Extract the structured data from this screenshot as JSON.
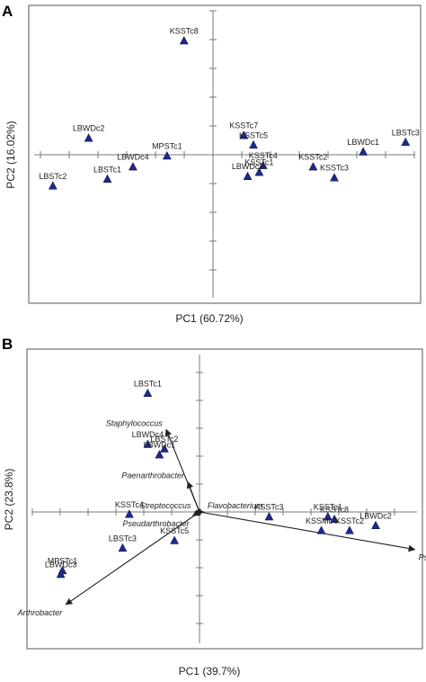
{
  "chart_data": [
    {
      "panel": "A",
      "type": "scatter",
      "xlabel": "PC1 (60.72%)",
      "ylabel": "PC2 (16.02%)",
      "xlim": [
        -1.05,
        1.05
      ],
      "ylim": [
        -1.05,
        1.05
      ],
      "marker_color": "#1c2a8c",
      "points": [
        {
          "label": "KSSTc8",
          "x": -0.17,
          "y": 0.83
        },
        {
          "label": "LBWDc2",
          "x": -0.73,
          "y": 0.12
        },
        {
          "label": "MPSTc1",
          "x": -0.27,
          "y": -0.01
        },
        {
          "label": "LBWDc4",
          "x": -0.47,
          "y": -0.09
        },
        {
          "label": "LBSTc1",
          "x": -0.62,
          "y": -0.18
        },
        {
          "label": "LBSTc2",
          "x": -0.94,
          "y": -0.23
        },
        {
          "label": "KSSTc7",
          "x": 0.16,
          "y": 0.14
        },
        {
          "label": "KSSTc5",
          "x": 0.21,
          "y": 0.07
        },
        {
          "label": "KSSTc4",
          "x": 0.26,
          "y": -0.08
        },
        {
          "label": "KSSTc1",
          "x": 0.24,
          "y": -0.13
        },
        {
          "label": "LBWDc3",
          "x": 0.18,
          "y": -0.16
        },
        {
          "label": "KSSTc2",
          "x": 0.52,
          "y": -0.09
        },
        {
          "label": "KSSTc3",
          "x": 0.63,
          "y": -0.17
        },
        {
          "label": "LBWDc1",
          "x": 0.78,
          "y": 0.02
        },
        {
          "label": "LBSTc3",
          "x": 1.0,
          "y": 0.09
        }
      ]
    },
    {
      "panel": "B",
      "type": "scatter",
      "xlabel": "PC1 (39.7%)",
      "ylabel": "PC2 (23.8%)",
      "xlim": [
        -1.0,
        1.0
      ],
      "ylim": [
        -1.05,
        1.05
      ],
      "marker_color": "#1c2a8c",
      "points": [
        {
          "label": "LBSTc1",
          "x": -0.31,
          "y": 0.79
        },
        {
          "label": "LBWDc4",
          "x": -0.31,
          "y": 0.45
        },
        {
          "label": "LBSTc2",
          "x": -0.21,
          "y": 0.42
        },
        {
          "label": "LBWDc1",
          "x": -0.24,
          "y": 0.38
        },
        {
          "label": "KSSTc4",
          "x": -0.42,
          "y": -0.02
        },
        {
          "label": "LBSTc3",
          "x": -0.46,
          "y": -0.29
        },
        {
          "label": "KSSTc5",
          "x": -0.15,
          "y": -0.23
        },
        {
          "label": "MPSTc1",
          "x": -0.82,
          "y": -0.47
        },
        {
          "label": "LBWDc3",
          "x": -0.83,
          "y": -0.5
        },
        {
          "label": "KSSTc3",
          "x": 0.32,
          "y": -0.04
        },
        {
          "label": "KSSTc1",
          "x": 0.59,
          "y": -0.04
        },
        {
          "label": "KSSTc8",
          "x": 0.62,
          "y": -0.06
        },
        {
          "label": "KSSMc4",
          "x": 0.56,
          "y": -0.15
        },
        {
          "label": "KSSTc2",
          "x": 0.69,
          "y": -0.15
        },
        {
          "label": "LBWDc2",
          "x": 0.81,
          "y": -0.11
        }
      ],
      "vectors": [
        {
          "label": "Staphylococcus",
          "x": -0.2,
          "y": 0.55
        },
        {
          "label": "Paenarthrobacter",
          "x": -0.07,
          "y": 0.2
        },
        {
          "label": "Streptococcus",
          "x": -0.03,
          "y": 0.0
        },
        {
          "label": "Pseudarthrobacter",
          "x": -0.04,
          "y": -0.03
        },
        {
          "label": "Flavobacterium",
          "x": 0.02,
          "y": 0.0
        },
        {
          "label": "Pseudomonas",
          "x": 0.99,
          "y": -0.3
        },
        {
          "label": "Arthrobacter",
          "x": -0.8,
          "y": -0.74
        }
      ]
    }
  ],
  "panels": {
    "a": {
      "letter": "A"
    },
    "b": {
      "letter": "B"
    }
  }
}
